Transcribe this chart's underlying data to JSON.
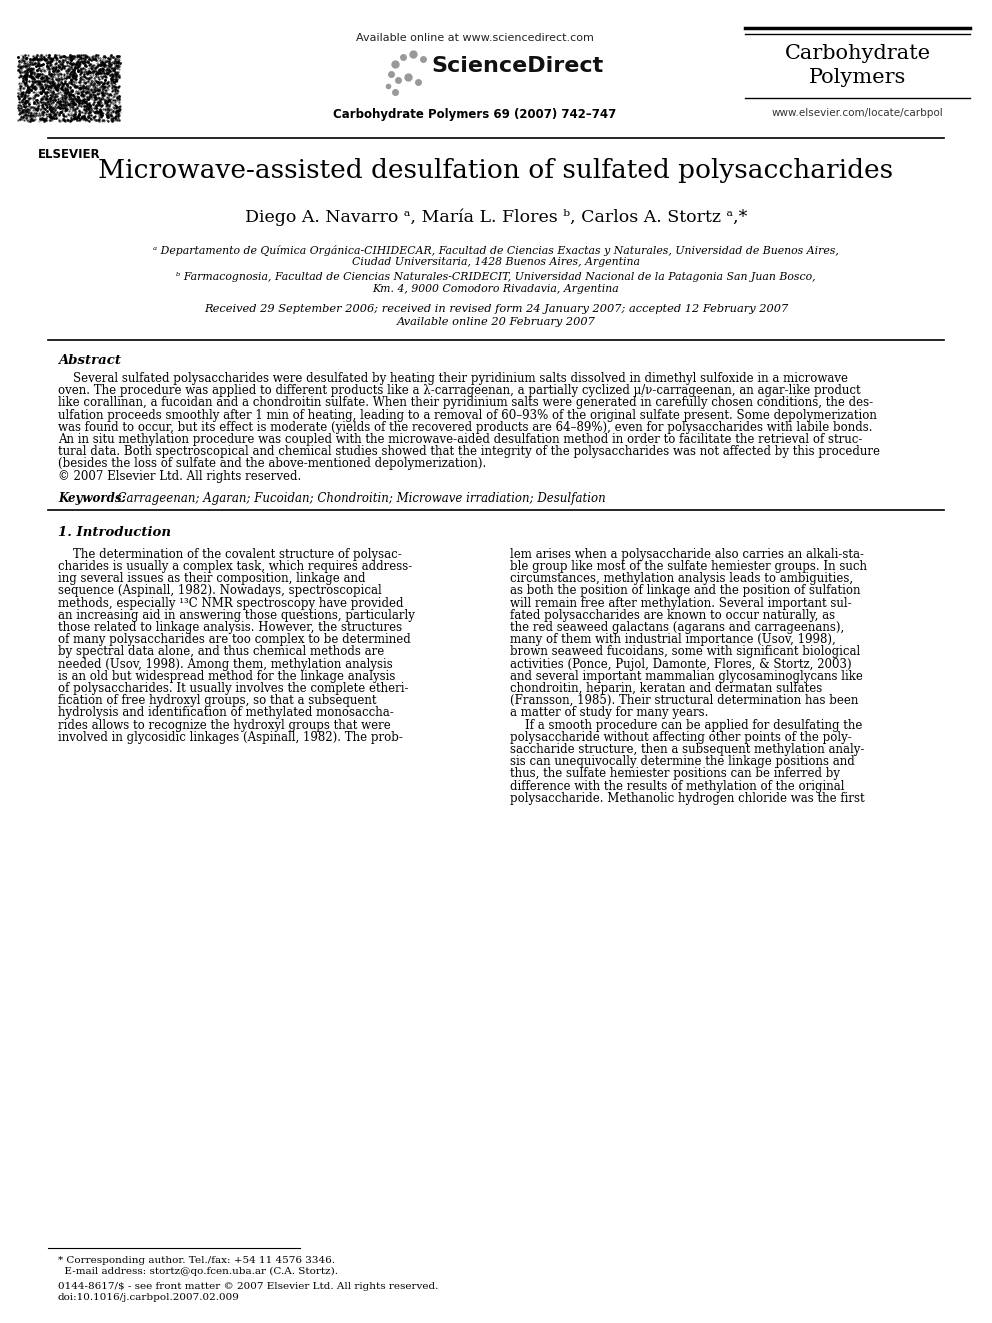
{
  "title": "Microwave-assisted desulfation of sulfated polysaccharides",
  "authors": "Diego A. Navarro ᵃ, María L. Flores ᵇ, Carlos A. Stortz ᵃ,*",
  "affil_a_line1": "ᵃ Departamento de Química Orgánica-CIHIDECAR, Facultad de Ciencias Exactas y Naturales, Universidad de Buenos Aires,",
  "affil_a_line2": "Ciudad Universitaria, 1428 Buenos Aires, Argentina",
  "affil_b_line1": "ᵇ Farmacognosia, Facultad de Ciencias Naturales-CRIDECIT, Universidad Nacional de la Patagonia San Juan Bosco,",
  "affil_b_line2": "Km. 4, 9000 Comodoro Rivadavia, Argentina",
  "dates_line1": "Received 29 September 2006; received in revised form 24 January 2007; accepted 12 February 2007",
  "dates_line2": "Available online 20 February 2007",
  "journal_header": "Carbohydrate Polymers 69 (2007) 742–747",
  "available_online": "Available online at www.sciencedirect.com",
  "journal_name_1": "Carbohydrate",
  "journal_name_2": "Polymers",
  "website": "www.elsevier.com/locate/carbpol",
  "abstract_title": "Abstract",
  "keywords_label": "Keywords:",
  "keywords_text": "  Carrageenan; Agaran; Fucoidan; Chondroitin; Microwave irradiation; Desulfation",
  "section1_title": "1. Introduction",
  "footnote_star_line1": "* Corresponding author. Tel./fax: +54 11 4576 3346.",
  "footnote_star_line2": "  E-mail address: stortz@qo.fcen.uba.ar (C.A. Stortz).",
  "footnote_bottom_line1": "0144-8617/$ - see front matter © 2007 Elsevier Ltd. All rights reserved.",
  "footnote_bottom_line2": "doi:10.1016/j.carbpol.2007.02.009",
  "bg_color": "#ffffff",
  "text_color": "#000000",
  "abstract_lines": [
    "    Several sulfated polysaccharides were desulfated by heating their pyridinium salts dissolved in dimethyl sulfoxide in a microwave",
    "oven. The procedure was applied to different products like a λ-carrageenan, a partially cyclized μ/ν-carrageenan, an agar-like product",
    "like corallinan, a fucoidan and a chondroitin sulfate. When their pyridinium salts were generated in carefully chosen conditions, the des-",
    "ulfation proceeds smoothly after 1 min of heating, leading to a removal of 60–93% of the original sulfate present. Some depolymerization",
    "was found to occur, but its effect is moderate (yields of the recovered products are 64–89%), even for polysaccharides with labile bonds.",
    "An in situ methylation procedure was coupled with the microwave-aided desulfation method in order to facilitate the retrieval of struc-",
    "tural data. Both spectroscopical and chemical studies showed that the integrity of the polysaccharides was not affected by this procedure",
    "(besides the loss of sulfate and the above-mentioned depolymerization).",
    "© 2007 Elsevier Ltd. All rights reserved."
  ],
  "col1_lines": [
    "    The determination of the covalent structure of polysac-",
    "charides is usually a complex task, which requires address-",
    "ing several issues as their composition, linkage and",
    "sequence (Aspinall, 1982). Nowadays, spectroscopical",
    "methods, especially ¹³C NMR spectroscopy have provided",
    "an increasing aid in answering those questions, particularly",
    "those related to linkage analysis. However, the structures",
    "of many polysaccharides are too complex to be determined",
    "by spectral data alone, and thus chemical methods are",
    "needed (Usov, 1998). Among them, methylation analysis",
    "is an old but widespread method for the linkage analysis",
    "of polysaccharides. It usually involves the complete etheri-",
    "fication of free hydroxyl groups, so that a subsequent",
    "hydrolysis and identification of methylated monosaccha-",
    "rides allows to recognize the hydroxyl groups that were",
    "involved in glycosidic linkages (Aspinall, 1982). The prob-"
  ],
  "col2_lines": [
    "lem arises when a polysaccharide also carries an alkali-sta-",
    "ble group like most of the sulfate hemiester groups. In such",
    "circumstances, methylation analysis leads to ambiguities,",
    "as both the position of linkage and the position of sulfation",
    "will remain free after methylation. Several important sul-",
    "fated polysaccharides are known to occur naturally, as",
    "the red seaweed galactans (agarans and carrageenans),",
    "many of them with industrial importance (Usov, 1998),",
    "brown seaweed fucoidans, some with significant biological",
    "activities (Ponce, Pujol, Damonte, Flores, & Stortz, 2003)",
    "and several important mammalian glycosaminoglycans like",
    "chondroitin, heparin, keratan and dermatan sulfates",
    "(Fransson, 1985). Their structural determination has been",
    "a matter of study for many years.",
    "    If a smooth procedure can be applied for desulfating the",
    "polysaccharide without affecting other points of the poly-",
    "saccharide structure, then a subsequent methylation analy-",
    "sis can unequivocally determine the linkage positions and",
    "thus, the sulfate hemiester positions can be inferred by",
    "difference with the results of methylation of the original",
    "polysaccharide. Methanolic hydrogen chloride was the first"
  ]
}
